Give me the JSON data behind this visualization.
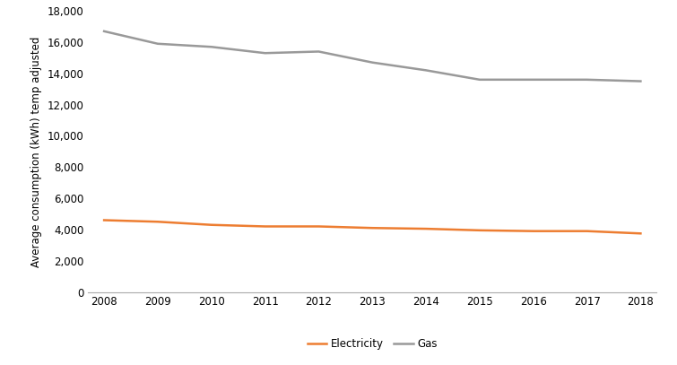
{
  "years": [
    2008,
    2009,
    2010,
    2011,
    2012,
    2013,
    2014,
    2015,
    2016,
    2017,
    2018
  ],
  "electricity": [
    4600,
    4500,
    4300,
    4200,
    4200,
    4100,
    4050,
    3950,
    3900,
    3900,
    3750
  ],
  "gas": [
    16700,
    15900,
    15700,
    15300,
    15400,
    14700,
    14200,
    13600,
    13600,
    13600,
    13500
  ],
  "elec_color": "#ED7D31",
  "gas_color": "#999999",
  "ylabel": "Average consumption (kWh) temp adjusted",
  "ylim": [
    0,
    18000
  ],
  "yticks": [
    0,
    2000,
    4000,
    6000,
    8000,
    10000,
    12000,
    14000,
    16000,
    18000
  ],
  "legend_labels": [
    "Electricity",
    "Gas"
  ],
  "background_color": "#ffffff",
  "line_width": 1.8
}
